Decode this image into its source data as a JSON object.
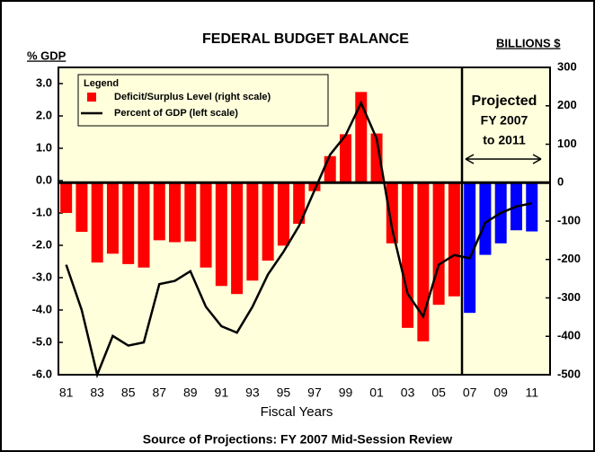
{
  "chart_data": {
    "type": "bar_line",
    "title": "FEDERAL BUDGET BALANCE",
    "y_axis_label": "% GDP",
    "y2_axis_label": "BILLIONS $",
    "x_axis_label": "Fiscal Years",
    "footer": "Source of Projections: FY 2007 Mid-Session Review",
    "legend_title": "Legend",
    "annotation": [
      "Projected",
      "FY 2007",
      "to 2011"
    ],
    "categories": [
      "81",
      null,
      "83",
      null,
      "85",
      null,
      "87",
      null,
      "89",
      null,
      "91",
      null,
      "93",
      null,
      "95",
      null,
      "97",
      null,
      "99",
      null,
      "01",
      null,
      "03",
      null,
      "05",
      null,
      "07",
      null,
      "09",
      null,
      "11"
    ],
    "series": [
      {
        "name": "Deficit/Surplus Level (right scale)",
        "axis": "y2",
        "kind": "bar",
        "color": "#ff0000",
        "colors": [
          "#ff0000",
          "#ff0000",
          "#ff0000",
          "#ff0000",
          "#ff0000",
          "#ff0000",
          "#ff0000",
          "#ff0000",
          "#ff0000",
          "#ff0000",
          "#ff0000",
          "#ff0000",
          "#ff0000",
          "#ff0000",
          "#ff0000",
          "#ff0000",
          "#ff0000",
          "#ff0000",
          "#ff0000",
          "#ff0000",
          "#ff0000",
          "#ff0000",
          "#ff0000",
          "#ff0000",
          "#ff0000",
          "#ff0000",
          "#0000ff",
          "#0000ff",
          "#0000ff",
          "#0000ff",
          "#0000ff"
        ],
        "values": [
          -79,
          -128,
          -208,
          -185,
          -212,
          -221,
          -150,
          -155,
          -153,
          -221,
          -269,
          -290,
          -255,
          -203,
          -164,
          -107,
          -22,
          69,
          126,
          236,
          128,
          -158,
          -378,
          -413,
          -318,
          -296,
          -339,
          -188,
          -158,
          -124,
          -127
        ]
      },
      {
        "name": "Percent of GDP (left scale)",
        "axis": "y",
        "kind": "line",
        "color": "#000000",
        "values": [
          -2.6,
          -4.0,
          -6.0,
          -4.8,
          -5.1,
          -5.0,
          -3.2,
          -3.1,
          -2.8,
          -3.9,
          -4.5,
          -4.7,
          -3.9,
          -2.9,
          -2.2,
          -1.4,
          -0.3,
          0.8,
          1.4,
          2.4,
          1.3,
          -1.5,
          -3.5,
          -4.2,
          -2.6,
          -2.3,
          -2.4,
          -1.3,
          -1.0,
          -0.8,
          -0.7
        ]
      }
    ],
    "ylim": [
      -6,
      3.5
    ],
    "yticks": [
      {
        "value": 3,
        "label": "3.0"
      },
      {
        "value": 2,
        "label": "2.0"
      },
      {
        "value": 1,
        "label": "1.0"
      },
      {
        "value": 0,
        "label": "0.0"
      },
      {
        "value": -1,
        "label": "-1.0"
      },
      {
        "value": -2,
        "label": "-2.0"
      },
      {
        "value": -3,
        "label": "-3.0"
      },
      {
        "value": -4,
        "label": "-4.0"
      },
      {
        "value": -5,
        "label": "-5.0"
      },
      {
        "value": -6,
        "label": "-6.0"
      }
    ],
    "y2lim": [
      -500,
      300
    ],
    "y2ticks": [
      300,
      200,
      100,
      0,
      -100,
      -200,
      -300,
      -400,
      -500
    ],
    "projection_start_index": 26,
    "background": "#ffffdc"
  }
}
